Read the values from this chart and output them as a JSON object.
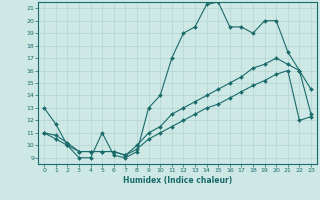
{
  "xlabel": "Humidex (Indice chaleur)",
  "xlim": [
    -0.5,
    23.5
  ],
  "ylim": [
    8.5,
    21.5
  ],
  "yticks": [
    9,
    10,
    11,
    12,
    13,
    14,
    15,
    16,
    17,
    18,
    19,
    20,
    21
  ],
  "xticks": [
    0,
    1,
    2,
    3,
    4,
    5,
    6,
    7,
    8,
    9,
    10,
    11,
    12,
    13,
    14,
    15,
    16,
    17,
    18,
    19,
    20,
    21,
    22,
    23
  ],
  "bg_color": "#cee8e5",
  "grid_color": "#b8d8d5",
  "line_color": "#1a6b6b",
  "line1_y": [
    13,
    11.7,
    10,
    9,
    9,
    11,
    9.2,
    9,
    9.5,
    13,
    14,
    17,
    19,
    19.5,
    21.3,
    21.5,
    19.5,
    19.5,
    19,
    20,
    20,
    17.5,
    16,
    12.5
  ],
  "line2_y": [
    11,
    10.8,
    10.2,
    9.5,
    9.5,
    9.5,
    9.5,
    9.2,
    10.0,
    11,
    11.5,
    12.5,
    13,
    13.5,
    14,
    14.5,
    15,
    15.5,
    16.2,
    16.5,
    17,
    16.5,
    16,
    14.5
  ],
  "line3_y": [
    11,
    10.5,
    10,
    9.5,
    9.5,
    9.5,
    9.5,
    9.2,
    9.7,
    10.5,
    11.0,
    11.5,
    12.0,
    12.5,
    13.0,
    13.3,
    13.8,
    14.3,
    14.8,
    15.2,
    15.7,
    16.0,
    12.0,
    12.3
  ]
}
